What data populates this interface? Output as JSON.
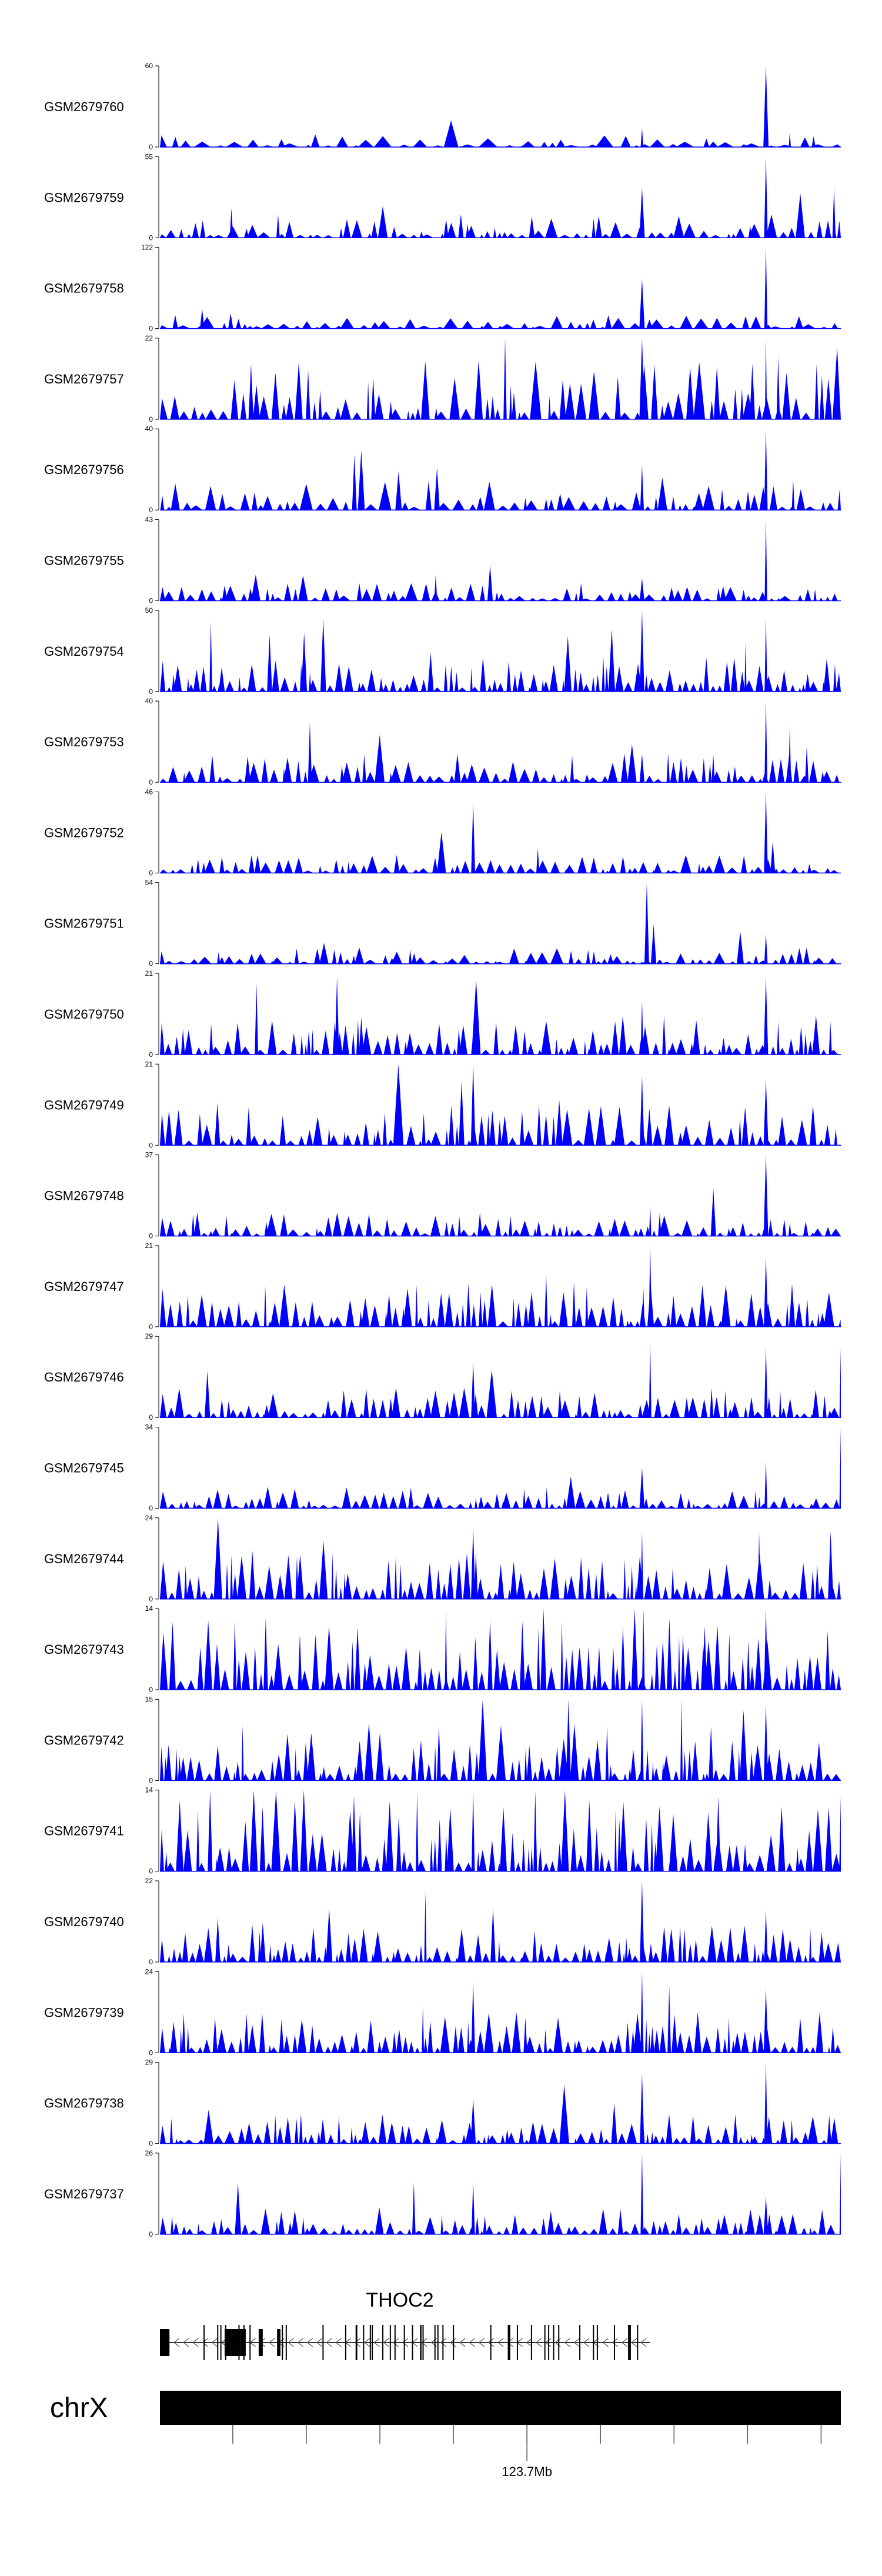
{
  "chart_data": {
    "type": "area",
    "title": "",
    "xlabel": "",
    "ylabel": "",
    "grid": false,
    "x_domain": [
      0,
      1000
    ],
    "fill_color": "#0000ff",
    "track_line_color": "#000000",
    "tracks": [
      {
        "name": "GSM2679760",
        "ymax": "60",
        "ymin": "0",
        "vmax": 60,
        "seed": 101,
        "base": 5,
        "density": 55,
        "peaks": [
          [
            708,
            14
          ],
          [
            890,
            60
          ],
          [
            925,
            11
          ],
          [
            960,
            8
          ]
        ]
      },
      {
        "name": "GSM2679759",
        "ymax": "55",
        "ymin": "0",
        "vmax": 55,
        "seed": 202,
        "base": 9,
        "density": 80,
        "peaks": [
          [
            105,
            20
          ],
          [
            708,
            34
          ],
          [
            890,
            55
          ],
          [
            990,
            34
          ]
        ]
      },
      {
        "name": "GSM2679758",
        "ymax": "122",
        "ymin": "0",
        "vmax": 122,
        "seed": 303,
        "base": 12,
        "density": 70,
        "peaks": [
          [
            62,
            30
          ],
          [
            708,
            75
          ],
          [
            890,
            122
          ]
        ]
      },
      {
        "name": "GSM2679757",
        "ymax": "22",
        "ymin": "0",
        "vmax": 22,
        "seed": 404,
        "base": 9,
        "density": 90,
        "peaks": [
          [
            708,
            22
          ],
          [
            890,
            22
          ],
          [
            870,
            15
          ],
          [
            908,
            17
          ]
        ]
      },
      {
        "name": "GSM2679756",
        "ymax": "40",
        "ymin": "0",
        "vmax": 40,
        "seed": 505,
        "base": 8,
        "density": 80,
        "peaks": [
          [
            708,
            22
          ],
          [
            890,
            40
          ],
          [
            930,
            15
          ]
        ]
      },
      {
        "name": "GSM2679755",
        "ymax": "43",
        "ymin": "0",
        "vmax": 43,
        "seed": 606,
        "base": 6,
        "density": 80,
        "peaks": [
          [
            405,
            14
          ],
          [
            708,
            12
          ],
          [
            890,
            43
          ]
        ]
      },
      {
        "name": "GSM2679754",
        "ymax": "50",
        "ymin": "0",
        "vmax": 50,
        "seed": 707,
        "base": 12,
        "density": 110,
        "peaks": [
          [
            708,
            50
          ],
          [
            860,
            30
          ],
          [
            890,
            45
          ]
        ]
      },
      {
        "name": "GSM2679753",
        "ymax": "40",
        "ymin": "0",
        "vmax": 40,
        "seed": 808,
        "base": 8,
        "density": 90,
        "peaks": [
          [
            708,
            14
          ],
          [
            890,
            40
          ],
          [
            925,
            28
          ],
          [
            950,
            18
          ]
        ]
      },
      {
        "name": "GSM2679752",
        "ymax": "46",
        "ymin": "0",
        "vmax": 46,
        "seed": 909,
        "base": 6,
        "density": 90,
        "peaks": [
          [
            460,
            40
          ],
          [
            555,
            14
          ],
          [
            890,
            46
          ],
          [
            900,
            18
          ]
        ]
      },
      {
        "name": "GSM2679751",
        "ymax": "54",
        "ymin": "0",
        "vmax": 54,
        "seed": 111,
        "base": 6,
        "density": 80,
        "peaks": [
          [
            715,
            54
          ],
          [
            725,
            26
          ],
          [
            890,
            20
          ]
        ]
      },
      {
        "name": "GSM2679750",
        "ymax": "21",
        "ymin": "0",
        "vmax": 21,
        "seed": 222,
        "base": 6,
        "density": 100,
        "peaks": [
          [
            260,
            20
          ],
          [
            890,
            20
          ],
          [
            708,
            14
          ]
        ]
      },
      {
        "name": "GSM2679749",
        "ymax": "21",
        "ymin": "0",
        "vmax": 21,
        "seed": 333,
        "base": 6,
        "density": 100,
        "peaks": [
          [
            460,
            21
          ],
          [
            708,
            18
          ],
          [
            890,
            17
          ]
        ]
      },
      {
        "name": "GSM2679748",
        "ymax": "37",
        "ymin": "0",
        "vmax": 37,
        "seed": 444,
        "base": 6,
        "density": 90,
        "peaks": [
          [
            720,
            14
          ],
          [
            890,
            37
          ]
        ]
      },
      {
        "name": "GSM2679747",
        "ymax": "21",
        "ymin": "0",
        "vmax": 21,
        "seed": 555,
        "base": 7,
        "density": 100,
        "peaks": [
          [
            720,
            21
          ],
          [
            710,
            10
          ],
          [
            890,
            18
          ]
        ]
      },
      {
        "name": "GSM2679746",
        "ymax": "29",
        "ymin": "0",
        "vmax": 29,
        "seed": 666,
        "base": 6,
        "density": 100,
        "peaks": [
          [
            460,
            20
          ],
          [
            720,
            27
          ],
          [
            890,
            25
          ],
          [
            1000,
            25
          ]
        ]
      },
      {
        "name": "GSM2679745",
        "ymax": "34",
        "ymin": "0",
        "vmax": 34,
        "seed": 777,
        "base": 5,
        "density": 100,
        "peaks": [
          [
            708,
            17
          ],
          [
            890,
            20
          ],
          [
            1000,
            34
          ]
        ]
      },
      {
        "name": "GSM2679744",
        "ymax": "24",
        "ymin": "0",
        "vmax": 24,
        "seed": 888,
        "base": 8,
        "density": 110,
        "peaks": [
          [
            460,
            21
          ],
          [
            708,
            20
          ],
          [
            880,
            20
          ],
          [
            985,
            20
          ]
        ]
      },
      {
        "name": "GSM2679743",
        "ymax": "14",
        "ymin": "0",
        "vmax": 14,
        "seed": 999,
        "base": 7,
        "density": 110,
        "peaks": [
          [
            710,
            14
          ],
          [
            890,
            14
          ],
          [
            800,
            11
          ],
          [
            420,
            14
          ]
        ]
      },
      {
        "name": "GSM2679742",
        "ymax": "15",
        "ymin": "0",
        "vmax": 15,
        "seed": 121,
        "base": 6,
        "density": 110,
        "peaks": [
          [
            600,
            15
          ],
          [
            708,
            15
          ],
          [
            890,
            14
          ]
        ]
      },
      {
        "name": "GSM2679741",
        "ymax": "14",
        "ymin": "0",
        "vmax": 14,
        "seed": 232,
        "base": 7,
        "density": 110,
        "peaks": [
          [
            460,
            14
          ],
          [
            285,
            13
          ],
          [
            820,
            13
          ],
          [
            1000,
            13
          ]
        ]
      },
      {
        "name": "GSM2679740",
        "ymax": "22",
        "ymin": "0",
        "vmax": 22,
        "seed": 343,
        "base": 6,
        "density": 110,
        "peaks": [
          [
            708,
            22
          ],
          [
            890,
            14
          ],
          [
            85,
            12
          ]
        ]
      },
      {
        "name": "GSM2679739",
        "ymax": "24",
        "ymin": "0",
        "vmax": 24,
        "seed": 454,
        "base": 7,
        "density": 110,
        "peaks": [
          [
            460,
            21
          ],
          [
            708,
            24
          ],
          [
            890,
            19
          ]
        ]
      },
      {
        "name": "GSM2679738",
        "ymax": "29",
        "ymin": "0",
        "vmax": 29,
        "seed": 565,
        "base": 6,
        "density": 100,
        "peaks": [
          [
            708,
            25
          ],
          [
            890,
            29
          ],
          [
            460,
            16
          ]
        ]
      },
      {
        "name": "GSM2679737",
        "ymax": "26",
        "ymin": "0",
        "vmax": 26,
        "seed": 676,
        "base": 5,
        "density": 100,
        "peaks": [
          [
            460,
            17
          ],
          [
            708,
            26
          ],
          [
            1000,
            26
          ],
          [
            890,
            12
          ]
        ]
      }
    ],
    "gene": {
      "name": "THOC2",
      "start": 0,
      "end": 720,
      "strand": "-",
      "exons": [
        [
          0,
          14
        ],
        [
          95,
          110
        ],
        [
          103,
          108
        ],
        [
          110,
          118
        ],
        [
          118,
          126
        ],
        [
          145,
          151
        ],
        [
          172,
          177
        ]
      ]
    },
    "chromosome": {
      "name": "chrX",
      "ticks": [
        107,
        215,
        323,
        431,
        539,
        647,
        755,
        863,
        971
      ],
      "position_label": "123.7Mb",
      "position_tick": 539
    }
  }
}
